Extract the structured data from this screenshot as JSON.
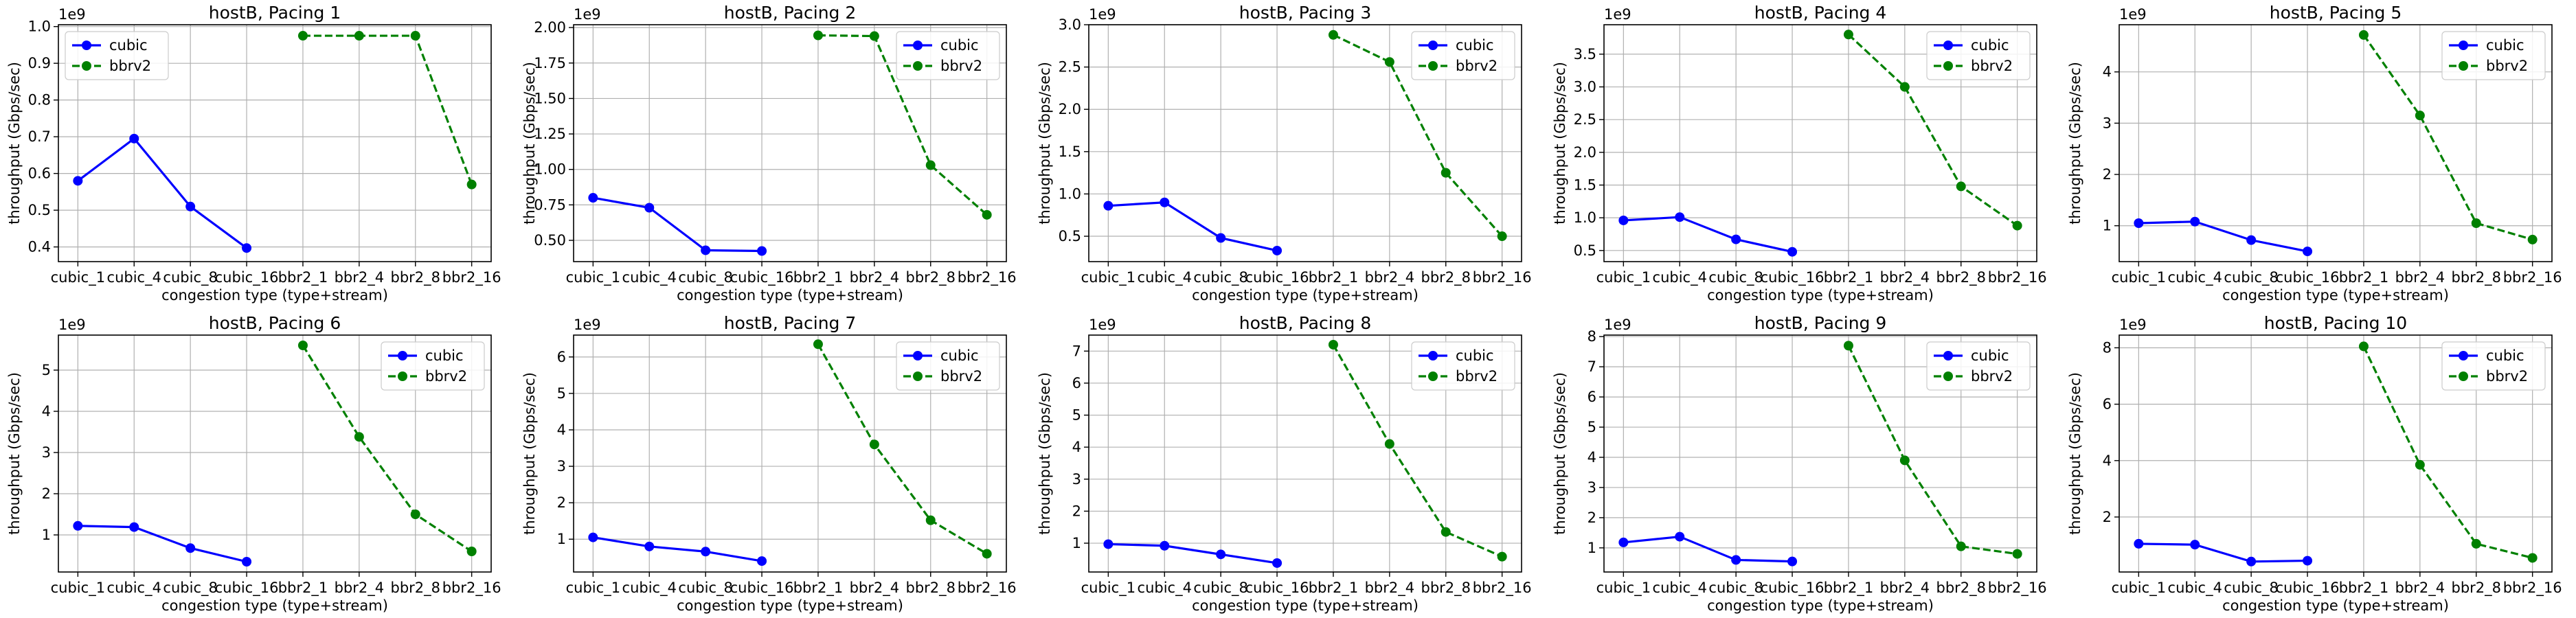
{
  "figure": {
    "colors": {
      "cubic": "#0000ff",
      "bbrv2": "#008000",
      "grid": "#b0b0b0",
      "axes": "#000000"
    },
    "legend_loc": "upper-right"
  },
  "chart_data": [
    {
      "type": "line",
      "title": "hostB, Pacing 1",
      "xlabel": "congestion type (type+stream)",
      "ylabel": "throughput (Gbps/sec)",
      "categories": [
        "cubic_1",
        "cubic_4",
        "cubic_8",
        "cubic_16",
        "bbr2_1",
        "bbr2_4",
        "bbr2_8",
        "bbr2_16"
      ],
      "series": [
        {
          "name": "cubic",
          "style": "solid",
          "values": [
            580000000.0,
            695000000.0,
            510000000.0,
            397000000.0,
            null,
            null,
            null,
            null
          ]
        },
        {
          "name": "bbrv2",
          "style": "dashed",
          "values": [
            null,
            null,
            null,
            null,
            975000000.0,
            975000000.0,
            975000000.0,
            570000000.0
          ]
        }
      ],
      "ylim": [
        360000000.0,
        1005000000.0
      ],
      "yticks": [
        400000000.0,
        500000000.0,
        600000000.0,
        700000000.0,
        800000000.0,
        900000000.0,
        1000000000.0
      ],
      "ytick_labels": [
        "0.4",
        "0.5",
        "0.6",
        "0.7",
        "0.8",
        "0.9",
        "1.0"
      ],
      "offset_text": "1e9",
      "grid": true,
      "legend_loc": "upper-left"
    },
    {
      "type": "line",
      "title": "hostB, Pacing 2",
      "xlabel": "congestion type (type+stream)",
      "ylabel": "throughput (Gbps/sec)",
      "categories": [
        "cubic_1",
        "cubic_4",
        "cubic_8",
        "cubic_16",
        "bbr2_1",
        "bbr2_4",
        "bbr2_8",
        "bbr2_16"
      ],
      "series": [
        {
          "name": "cubic",
          "style": "solid",
          "values": [
            800000000.0,
            730000000.0,
            430000000.0,
            425000000.0,
            null,
            null,
            null,
            null
          ]
        },
        {
          "name": "bbrv2",
          "style": "dashed",
          "values": [
            null,
            null,
            null,
            null,
            1945000000.0,
            1940000000.0,
            1030000000.0,
            680000000.0
          ]
        }
      ],
      "ylim": [
        350000000.0,
        2020000000.0
      ],
      "yticks": [
        500000000.0,
        750000000.0,
        1000000000.0,
        1250000000.0,
        1500000000.0,
        1750000000.0,
        2000000000.0
      ],
      "ytick_labels": [
        "0.50",
        "0.75",
        "1.00",
        "1.25",
        "1.50",
        "1.75",
        "2.00"
      ],
      "offset_text": "1e9",
      "grid": true,
      "legend_loc": "upper-right"
    },
    {
      "type": "line",
      "title": "hostB, Pacing 3",
      "xlabel": "congestion type (type+stream)",
      "ylabel": "throughput (Gbps/sec)",
      "categories": [
        "cubic_1",
        "cubic_4",
        "cubic_8",
        "cubic_16",
        "bbr2_1",
        "bbr2_4",
        "bbr2_8",
        "bbr2_16"
      ],
      "series": [
        {
          "name": "cubic",
          "style": "solid",
          "values": [
            860000000.0,
            900000000.0,
            480000000.0,
            330000000.0,
            null,
            null,
            null,
            null
          ]
        },
        {
          "name": "bbrv2",
          "style": "dashed",
          "values": [
            null,
            null,
            null,
            null,
            2880000000.0,
            2560000000.0,
            1250000000.0,
            500000000.0
          ]
        }
      ],
      "ylim": [
        200000000.0,
        3000000000.0
      ],
      "yticks": [
        500000000.0,
        1000000000.0,
        1500000000.0,
        2000000000.0,
        2500000000.0,
        3000000000.0
      ],
      "ytick_labels": [
        "0.5",
        "1.0",
        "1.5",
        "2.0",
        "2.5",
        "3.0"
      ],
      "offset_text": "1e9",
      "grid": true,
      "legend_loc": "upper-right"
    },
    {
      "type": "line",
      "title": "hostB, Pacing 4",
      "xlabel": "congestion type (type+stream)",
      "ylabel": "throughput (Gbps/sec)",
      "categories": [
        "cubic_1",
        "cubic_4",
        "cubic_8",
        "cubic_16",
        "bbr2_1",
        "bbr2_4",
        "bbr2_8",
        "bbr2_16"
      ],
      "series": [
        {
          "name": "cubic",
          "style": "solid",
          "values": [
            960000000.0,
            1010000000.0,
            670000000.0,
            480000000.0,
            null,
            null,
            null,
            null
          ]
        },
        {
          "name": "bbrv2",
          "style": "dashed",
          "values": [
            null,
            null,
            null,
            null,
            3800000000.0,
            3000000000.0,
            1480000000.0,
            880000000.0
          ]
        }
      ],
      "ylim": [
        330000000.0,
        3950000000.0
      ],
      "yticks": [
        500000000.0,
        1000000000.0,
        1500000000.0,
        2000000000.0,
        2500000000.0,
        3000000000.0,
        3500000000.0
      ],
      "ytick_labels": [
        "0.5",
        "1.0",
        "1.5",
        "2.0",
        "2.5",
        "3.0",
        "3.5"
      ],
      "offset_text": "1e9",
      "grid": true,
      "legend_loc": "upper-right"
    },
    {
      "type": "line",
      "title": "hostB, Pacing 5",
      "xlabel": "congestion type (type+stream)",
      "ylabel": "throughput (Gbps/sec)",
      "categories": [
        "cubic_1",
        "cubic_4",
        "cubic_8",
        "cubic_16",
        "bbr2_1",
        "bbr2_4",
        "bbr2_8",
        "bbr2_16"
      ],
      "series": [
        {
          "name": "cubic",
          "style": "solid",
          "values": [
            1050000000.0,
            1080000000.0,
            720000000.0,
            500000000.0,
            null,
            null,
            null,
            null
          ]
        },
        {
          "name": "bbrv2",
          "style": "dashed",
          "values": [
            null,
            null,
            null,
            null,
            4720000000.0,
            3150000000.0,
            1050000000.0,
            730000000.0
          ]
        }
      ],
      "ylim": [
        300000000.0,
        4920000000.0
      ],
      "yticks": [
        1000000000.0,
        2000000000.0,
        3000000000.0,
        4000000000.0
      ],
      "ytick_labels": [
        "1",
        "2",
        "3",
        "4"
      ],
      "offset_text": "1e9",
      "grid": true,
      "legend_loc": "upper-right"
    },
    {
      "type": "line",
      "title": "hostB, Pacing 6",
      "xlabel": "congestion type (type+stream)",
      "ylabel": "throughput (Gbps/sec)",
      "categories": [
        "cubic_1",
        "cubic_4",
        "cubic_8",
        "cubic_16",
        "bbr2_1",
        "bbr2_4",
        "bbr2_8",
        "bbr2_16"
      ],
      "series": [
        {
          "name": "cubic",
          "style": "solid",
          "values": [
            1220000000.0,
            1190000000.0,
            680000000.0,
            350000000.0,
            null,
            null,
            null,
            null
          ]
        },
        {
          "name": "bbrv2",
          "style": "dashed",
          "values": [
            null,
            null,
            null,
            null,
            5600000000.0,
            3380000000.0,
            1500000000.0,
            600000000.0
          ]
        }
      ],
      "ylim": [
        100000000.0,
        5850000000.0
      ],
      "yticks": [
        1000000000.0,
        2000000000.0,
        3000000000.0,
        4000000000.0,
        5000000000.0
      ],
      "ytick_labels": [
        "1",
        "2",
        "3",
        "4",
        "5"
      ],
      "offset_text": "1e9",
      "grid": true,
      "legend_loc": "upper-right"
    },
    {
      "type": "line",
      "title": "hostB, Pacing 7",
      "xlabel": "congestion type (type+stream)",
      "ylabel": "throughput (Gbps/sec)",
      "categories": [
        "cubic_1",
        "cubic_4",
        "cubic_8",
        "cubic_16",
        "bbr2_1",
        "bbr2_4",
        "bbr2_8",
        "bbr2_16"
      ],
      "series": [
        {
          "name": "cubic",
          "style": "solid",
          "values": [
            1050000000.0,
            800000000.0,
            660000000.0,
            400000000.0,
            null,
            null,
            null,
            null
          ]
        },
        {
          "name": "bbrv2",
          "style": "dashed",
          "values": [
            null,
            null,
            null,
            null,
            6350000000.0,
            3600000000.0,
            1520000000.0,
            600000000.0
          ]
        }
      ],
      "ylim": [
        100000000.0,
        6600000000.0
      ],
      "yticks": [
        1000000000.0,
        2000000000.0,
        3000000000.0,
        4000000000.0,
        5000000000.0,
        6000000000.0
      ],
      "ytick_labels": [
        "1",
        "2",
        "3",
        "4",
        "5",
        "6"
      ],
      "offset_text": "1e9",
      "grid": true,
      "legend_loc": "upper-right"
    },
    {
      "type": "line",
      "title": "hostB, Pacing 8",
      "xlabel": "congestion type (type+stream)",
      "ylabel": "throughput (Gbps/sec)",
      "categories": [
        "cubic_1",
        "cubic_4",
        "cubic_8",
        "cubic_16",
        "bbr2_1",
        "bbr2_4",
        "bbr2_8",
        "bbr2_16"
      ],
      "series": [
        {
          "name": "cubic",
          "style": "solid",
          "values": [
            970000000.0,
            920000000.0,
            650000000.0,
            380000000.0,
            null,
            null,
            null,
            null
          ]
        },
        {
          "name": "bbrv2",
          "style": "dashed",
          "values": [
            null,
            null,
            null,
            null,
            7200000000.0,
            4100000000.0,
            1350000000.0,
            580000000.0
          ]
        }
      ],
      "ylim": [
        100000000.0,
        7500000000.0
      ],
      "yticks": [
        1000000000.0,
        2000000000.0,
        3000000000.0,
        4000000000.0,
        5000000000.0,
        6000000000.0,
        7000000000.0
      ],
      "ytick_labels": [
        "1",
        "2",
        "3",
        "4",
        "5",
        "6",
        "7"
      ],
      "offset_text": "1e9",
      "grid": true,
      "legend_loc": "upper-right"
    },
    {
      "type": "line",
      "title": "hostB, Pacing 9",
      "xlabel": "congestion type (type+stream)",
      "ylabel": "throughput (Gbps/sec)",
      "categories": [
        "cubic_1",
        "cubic_4",
        "cubic_8",
        "cubic_16",
        "bbr2_1",
        "bbr2_4",
        "bbr2_8",
        "bbr2_16"
      ],
      "series": [
        {
          "name": "cubic",
          "style": "solid",
          "values": [
            1180000000.0,
            1370000000.0,
            600000000.0,
            550000000.0,
            null,
            null,
            null,
            null
          ]
        },
        {
          "name": "bbrv2",
          "style": "dashed",
          "values": [
            null,
            null,
            null,
            null,
            7700000000.0,
            3900000000.0,
            1050000000.0,
            800000000.0
          ]
        }
      ],
      "ylim": [
        200000000.0,
        8050000000.0
      ],
      "yticks": [
        1000000000.0,
        2000000000.0,
        3000000000.0,
        4000000000.0,
        5000000000.0,
        6000000000.0,
        7000000000.0,
        8000000000.0
      ],
      "ytick_labels": [
        "1",
        "2",
        "3",
        "4",
        "5",
        "6",
        "7",
        "8"
      ],
      "offset_text": "1e9",
      "grid": true,
      "legend_loc": "upper-right"
    },
    {
      "type": "line",
      "title": "hostB, Pacing 10",
      "xlabel": "congestion type (type+stream)",
      "ylabel": "throughput (Gbps/sec)",
      "categories": [
        "cubic_1",
        "cubic_4",
        "cubic_8",
        "cubic_16",
        "bbr2_1",
        "bbr2_4",
        "bbr2_8",
        "bbr2_16"
      ],
      "series": [
        {
          "name": "cubic",
          "style": "solid",
          "values": [
            1050000000.0,
            1020000000.0,
            420000000.0,
            450000000.0,
            null,
            null,
            null,
            null
          ]
        },
        {
          "name": "bbrv2",
          "style": "dashed",
          "values": [
            null,
            null,
            null,
            null,
            8050000000.0,
            3850000000.0,
            1050000000.0,
            550000000.0
          ]
        }
      ],
      "ylim": [
        50000000.0,
        8450000000.0
      ],
      "yticks": [
        2000000000.0,
        4000000000.0,
        6000000000.0,
        8000000000.0
      ],
      "ytick_labels": [
        "2",
        "4",
        "6",
        "8"
      ],
      "offset_text": "1e9",
      "grid": true,
      "legend_loc": "upper-right"
    }
  ]
}
